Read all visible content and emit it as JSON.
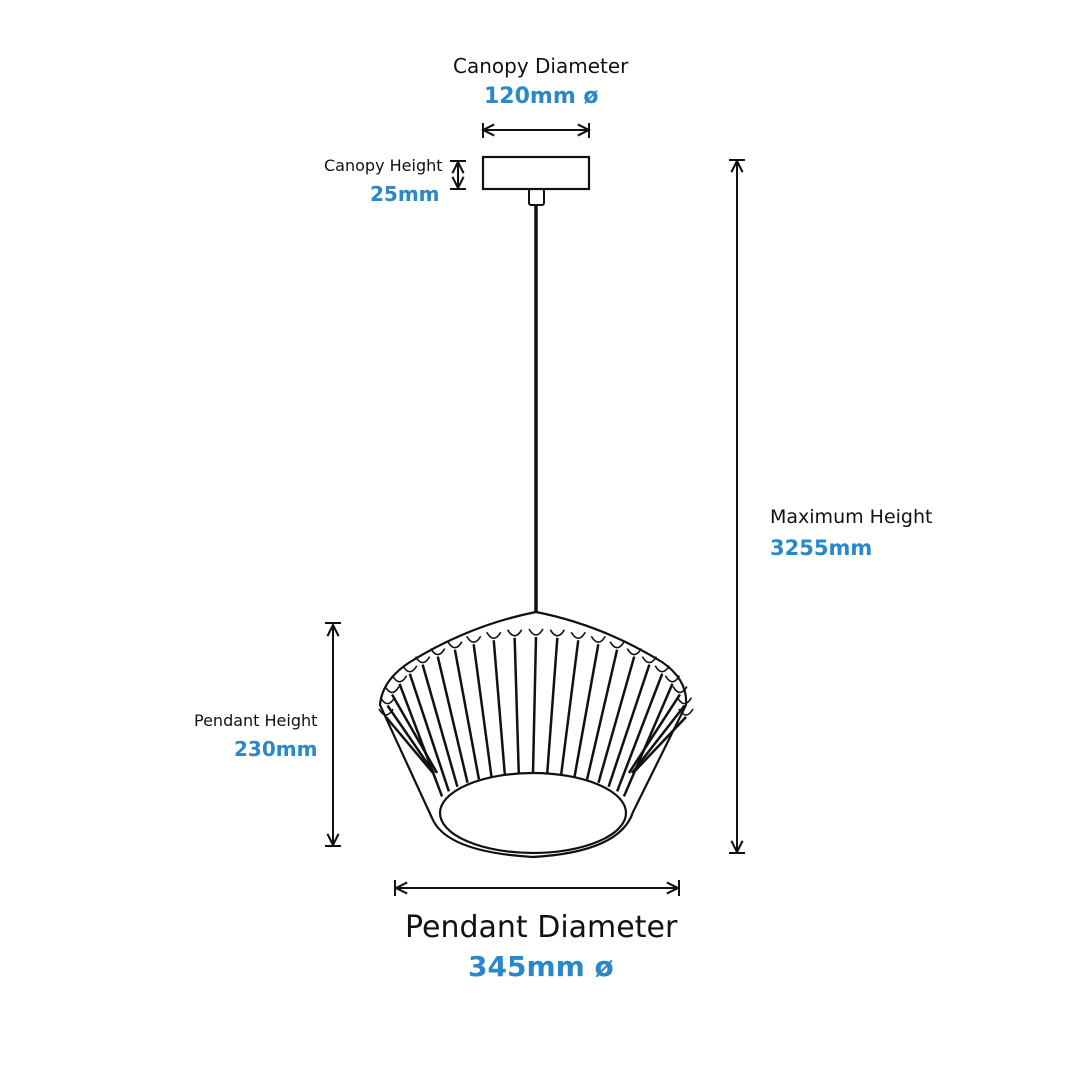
{
  "colors": {
    "accent": "#2a87c8",
    "line": "#111111"
  },
  "canopy_diameter": {
    "label": "Canopy Diameter",
    "value": "120mm ø"
  },
  "canopy_height": {
    "label": "Canopy Height",
    "value": "25mm"
  },
  "maximum_height": {
    "label": "Maximum Height",
    "value": "3255mm"
  },
  "pendant_height": {
    "label": "Pendant Height",
    "value": "230mm"
  },
  "pendant_diameter": {
    "label": "Pendant Diameter",
    "value": "345mm ø"
  }
}
